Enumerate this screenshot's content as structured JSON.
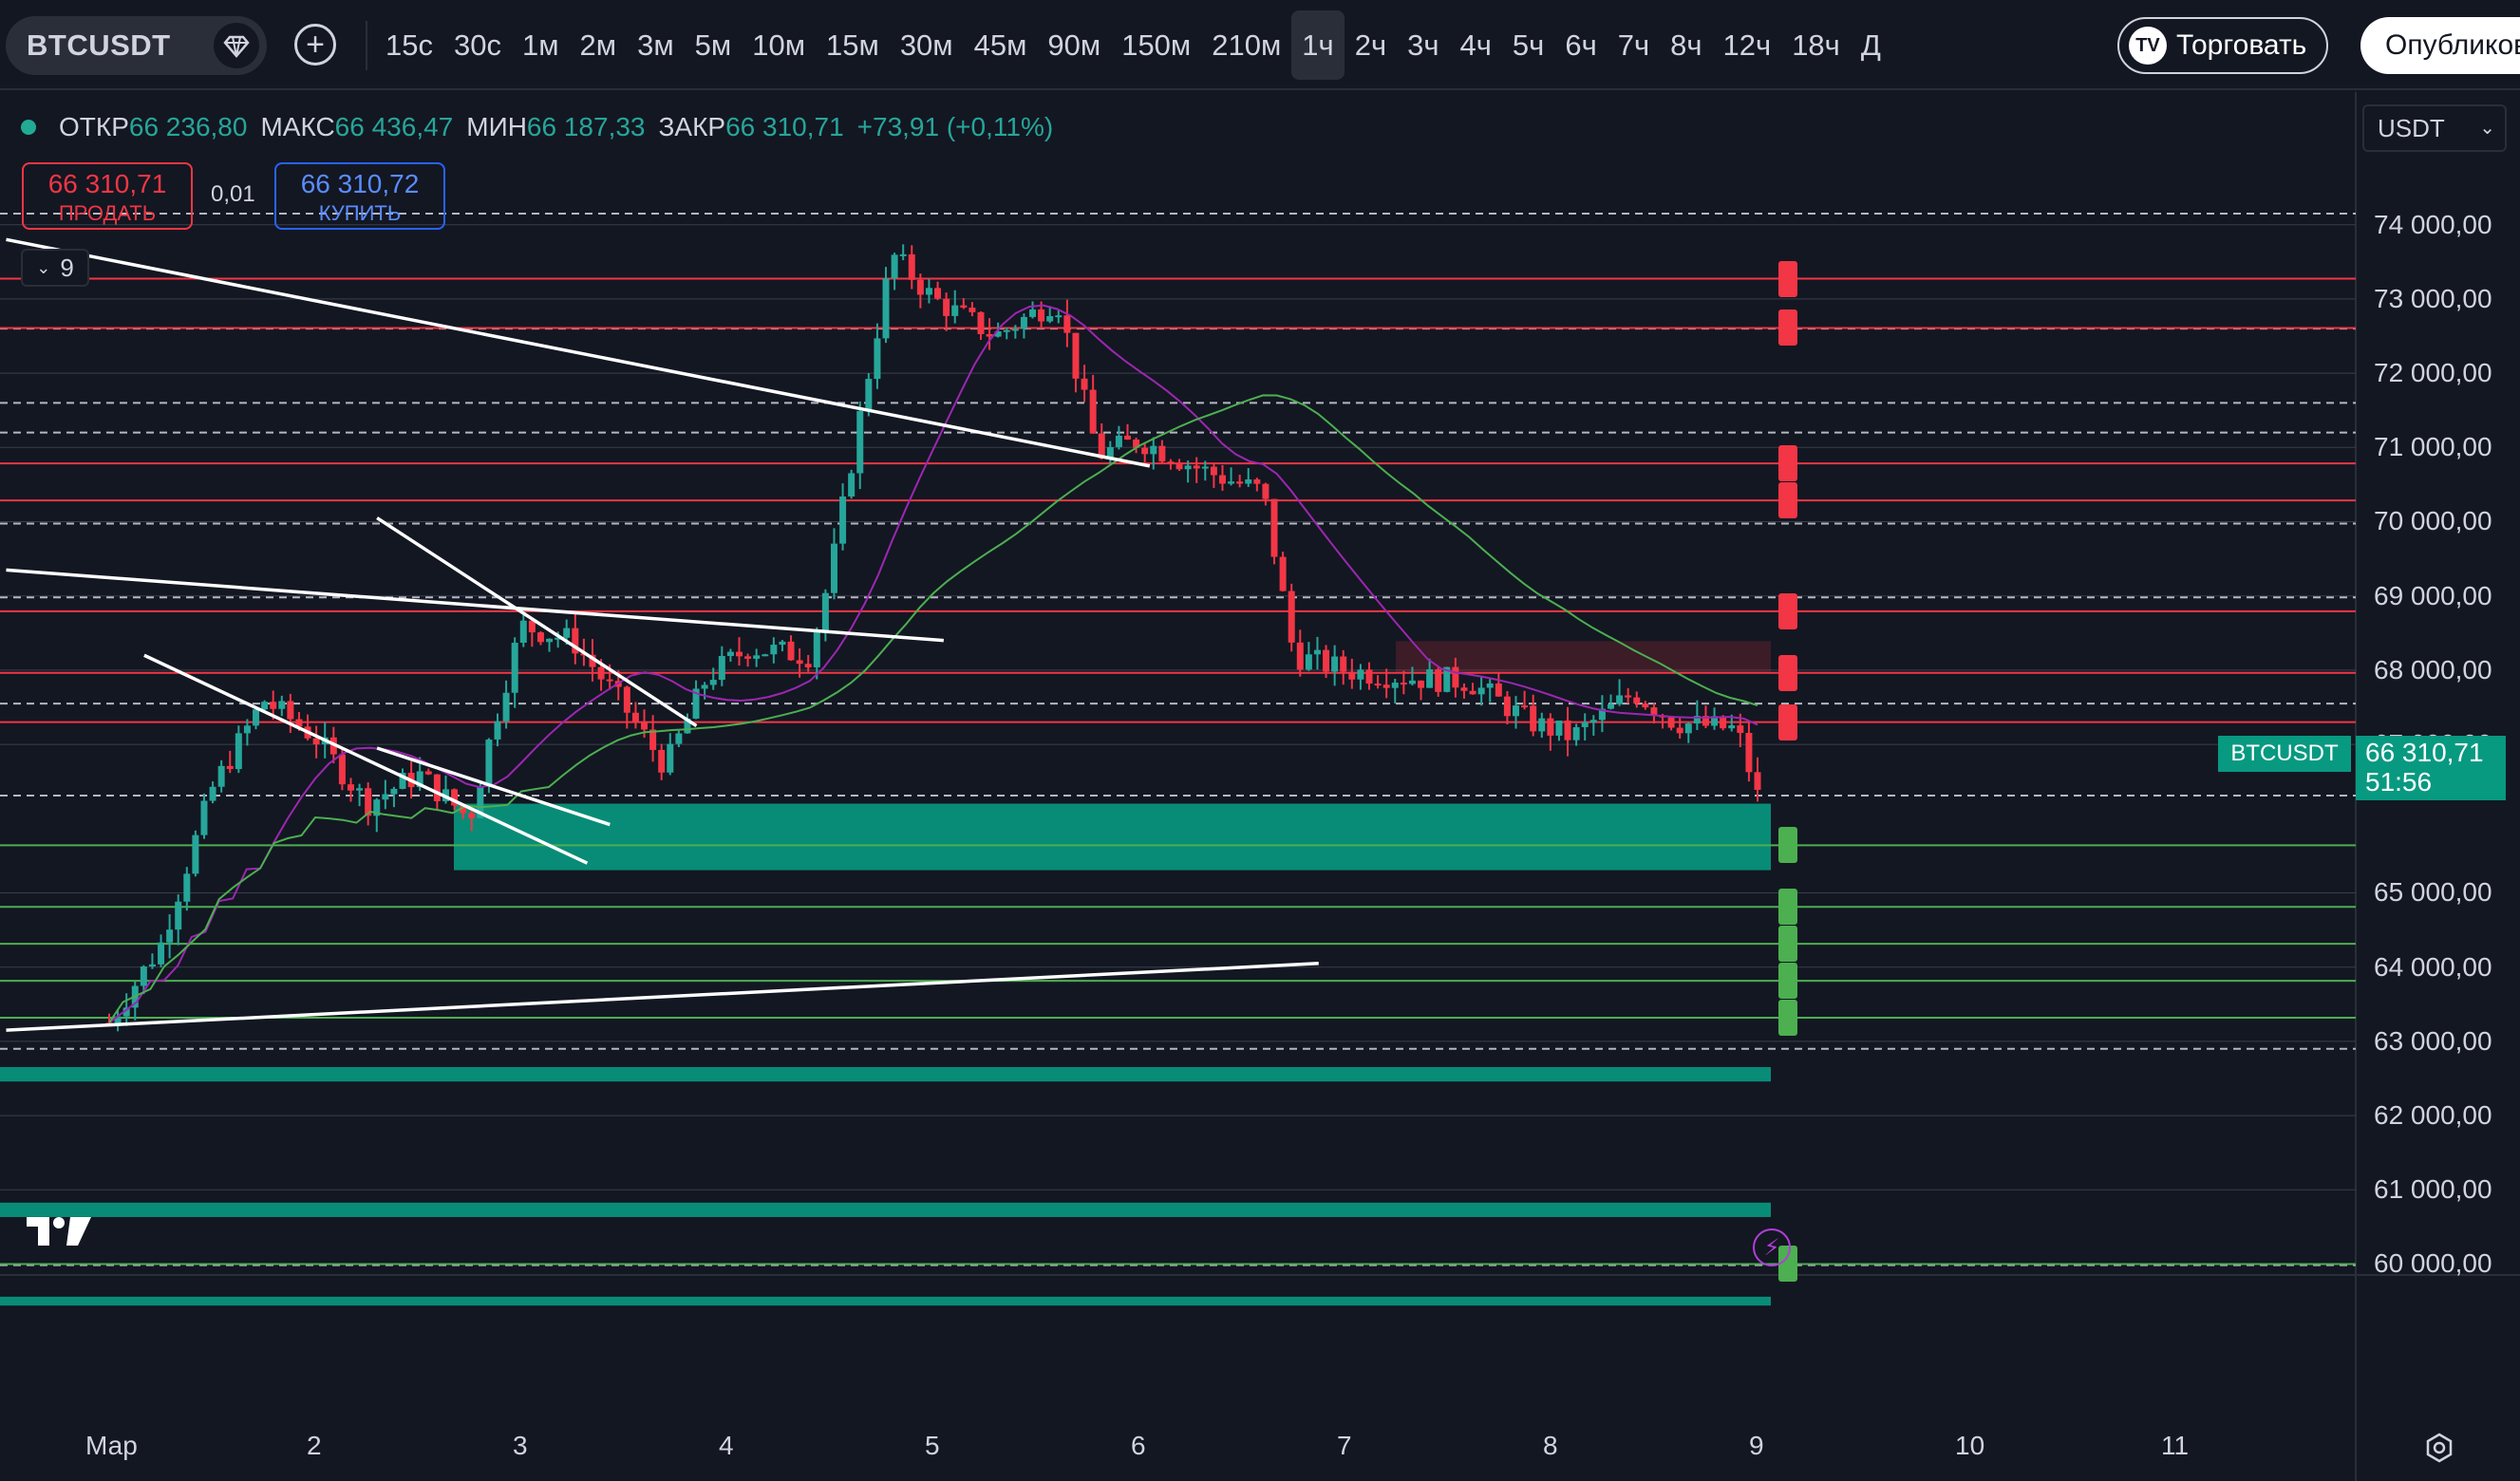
{
  "toolbar": {
    "symbol": "BTCUSDT",
    "intervals": [
      "15с",
      "30с",
      "1м",
      "2м",
      "3м",
      "5м",
      "10м",
      "15м",
      "30м",
      "45м",
      "90м",
      "150м",
      "210м",
      "1ч",
      "2ч",
      "3ч",
      "4ч",
      "5ч",
      "6ч",
      "7ч",
      "8ч",
      "12ч",
      "18ч",
      "Д"
    ],
    "active_interval": "1ч",
    "trade_label": "Торговать",
    "publish_label": "Опубликовать"
  },
  "legend": {
    "open_label": "ОТКР",
    "open": "66 236,80",
    "high_label": "МАКС",
    "high": "66 436,47",
    "low_label": "МИН",
    "low": "66 187,33",
    "close_label": "ЗАКР",
    "close": "66 310,71",
    "change": "+73,91 (+0,11%)"
  },
  "trade_panel": {
    "sell_price": "66 310,71",
    "sell_label": "ПРОДАТЬ",
    "spread": "0,01",
    "buy_price": "66 310,72",
    "buy_label": "КУПИТЬ"
  },
  "indicators_count": "9",
  "currency": "USDT",
  "price_axis": [
    "74 000,00",
    "73 000,00",
    "72 000,00",
    "71 000,00",
    "70 000,00",
    "69 000,00",
    "68 000,00",
    "67 000,00",
    "65 000,00",
    "64 000,00",
    "63 000,00",
    "62 000,00",
    "61 000,00",
    "60 000,00"
  ],
  "time_axis": [
    "Мар",
    "2",
    "3",
    "4",
    "5",
    "6",
    "7",
    "8",
    "9",
    "10",
    "11"
  ],
  "current_price": {
    "symbol": "BTCUSDT",
    "price": "66 310,71",
    "countdown": "51:56"
  },
  "resistance_levels": [
    "73273.11",
    "72609.45",
    "70784.40",
    "70286.66",
    "68793.43",
    "67963.87",
    "67300.21"
  ],
  "support_levels": [
    "65641.07",
    "64811.50",
    "64313.76",
    "63816.02",
    "63318.28",
    "60000.00"
  ],
  "zone_labels": [
    "68391.27",
    "66753.68",
    "66201.59",
    "65305.69",
    "62653.79",
    "62459.03",
    "60827.58",
    "60633.75",
    "59441.04"
  ],
  "colors": {
    "background": "#131722",
    "bull": "#26a69a",
    "bear": "#f23645",
    "zone_green": "#089981",
    "ma_purple": "#9c27b0",
    "ma_green": "#4caf50"
  }
}
